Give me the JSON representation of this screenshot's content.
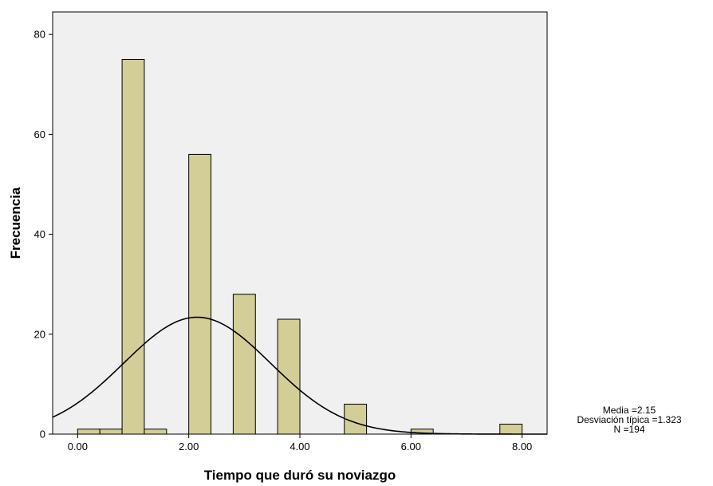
{
  "chart_data": {
    "type": "histogram",
    "title": "",
    "xlabel": "Tiempo que duró su noviazgo",
    "ylabel": "Frecuencia",
    "xlim": [
      -0.45,
      8.45
    ],
    "ylim": [
      0,
      84.5
    ],
    "xticks": [
      0,
      2,
      4,
      6,
      8
    ],
    "xtick_labels": [
      "0.00",
      "2.00",
      "4.00",
      "6.00",
      "8.00"
    ],
    "yticks": [
      0,
      20,
      40,
      60,
      80
    ],
    "ytick_labels": [
      "0",
      "20",
      "40",
      "60",
      "80"
    ],
    "bin_width": 0.4,
    "bins": [
      {
        "x0": 0.0,
        "x1": 0.4,
        "count": 1
      },
      {
        "x0": 0.4,
        "x1": 0.8,
        "count": 1
      },
      {
        "x0": 0.8,
        "x1": 1.2,
        "count": 75
      },
      {
        "x0": 1.2,
        "x1": 1.6,
        "count": 1
      },
      {
        "x0": 2.0,
        "x1": 2.4,
        "count": 56
      },
      {
        "x0": 2.8,
        "x1": 3.2,
        "count": 28
      },
      {
        "x0": 3.6,
        "x1": 4.0,
        "count": 23
      },
      {
        "x0": 4.8,
        "x1": 5.2,
        "count": 6
      },
      {
        "x0": 6.0,
        "x1": 6.4,
        "count": 1
      },
      {
        "x0": 7.6,
        "x1": 8.0,
        "count": 2
      }
    ],
    "normal_curve": {
      "mean": 2.15,
      "sd": 1.323,
      "n": 194,
      "bin_width": 0.4
    },
    "grid": false,
    "colors": {
      "plot_bg": "#f0f0f0",
      "bar_fill": "#d3ce97",
      "bar_stroke": "#000000",
      "curve": "#000000"
    },
    "stats": {
      "mean_label": "Media =2.15",
      "sd_label": "Desviación típica =1.323",
      "n_label": "N =194"
    }
  }
}
